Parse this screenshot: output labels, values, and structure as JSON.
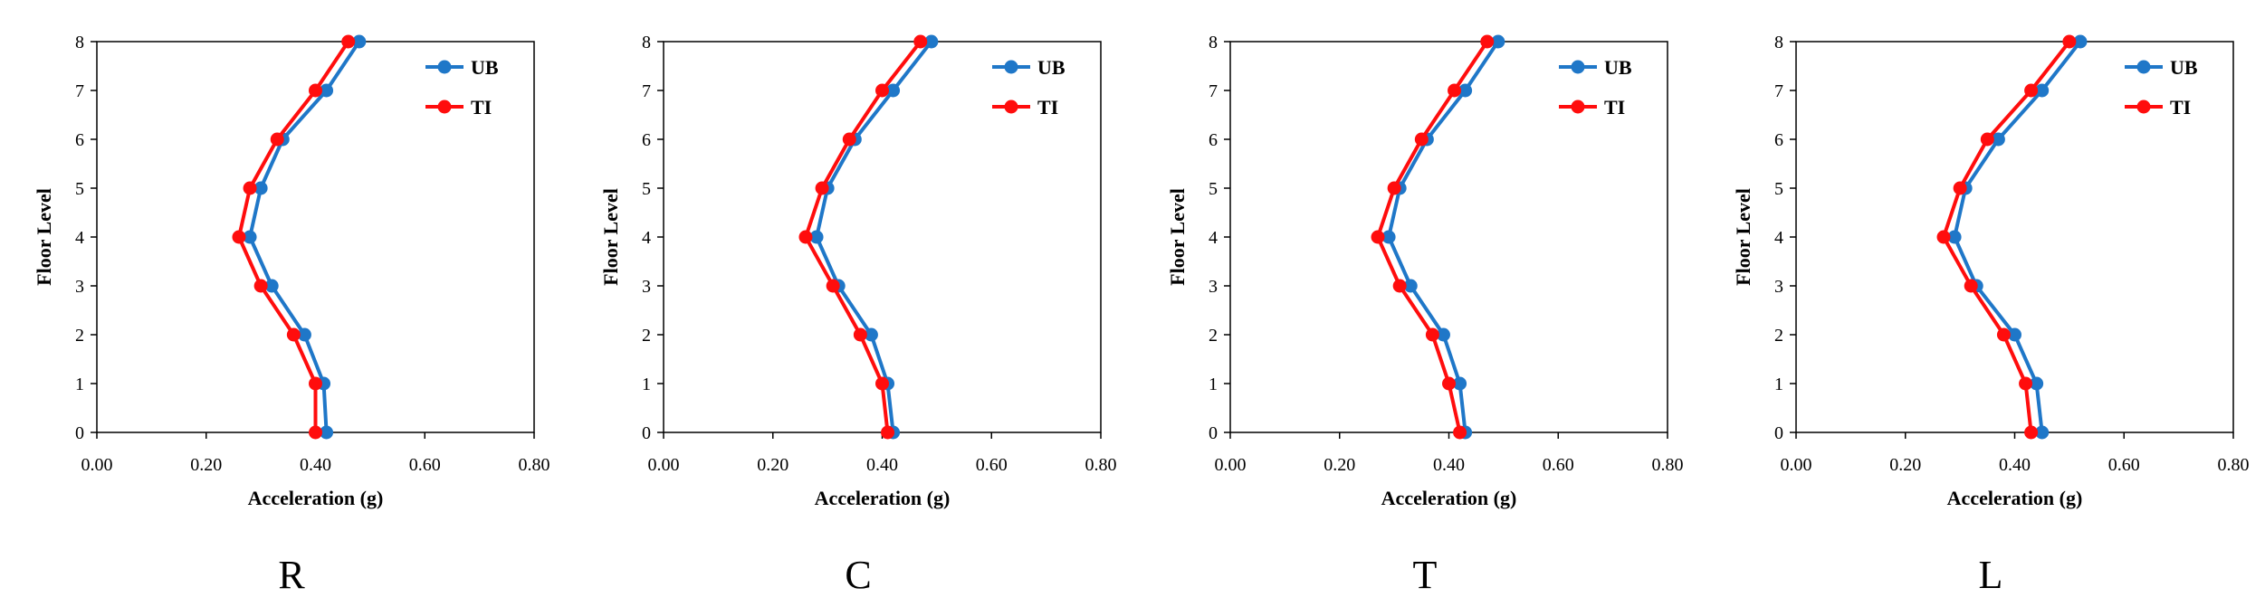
{
  "figure": {
    "colors": {
      "UB": "#1f77c8",
      "TI": "#ff0d0d"
    }
  },
  "chart_data": [
    {
      "panel": "R",
      "type": "line",
      "xlabel": "Acceleration (g)",
      "ylabel": "Floor Level",
      "xlim": [
        0,
        0.8
      ],
      "ylim": [
        0,
        8
      ],
      "x_ticks": [
        "0.00",
        "0.20",
        "0.40",
        "0.60",
        "0.80"
      ],
      "y_ticks": [
        "0",
        "1",
        "2",
        "3",
        "4",
        "5",
        "6",
        "7",
        "8"
      ],
      "legend": [
        "UB",
        "TI"
      ],
      "legend_position": "top-right",
      "series": [
        {
          "name": "UB",
          "floors": [
            0,
            1,
            2,
            3,
            4,
            5,
            6,
            7,
            8
          ],
          "values": [
            0.42,
            0.415,
            0.38,
            0.32,
            0.28,
            0.3,
            0.34,
            0.42,
            0.48
          ]
        },
        {
          "name": "TI",
          "floors": [
            0,
            1,
            2,
            3,
            4,
            5,
            6,
            7,
            8
          ],
          "values": [
            0.4,
            0.4,
            0.36,
            0.3,
            0.26,
            0.28,
            0.33,
            0.4,
            0.46
          ]
        }
      ]
    },
    {
      "panel": "C",
      "type": "line",
      "xlabel": "Acceleration (g)",
      "ylabel": "Floor Level",
      "xlim": [
        0,
        0.8
      ],
      "ylim": [
        0,
        8
      ],
      "x_ticks": [
        "0.00",
        "0.20",
        "0.40",
        "0.60",
        "0.80"
      ],
      "y_ticks": [
        "0",
        "1",
        "2",
        "3",
        "4",
        "5",
        "6",
        "7",
        "8"
      ],
      "legend": [
        "UB",
        "TI"
      ],
      "legend_position": "top-right",
      "series": [
        {
          "name": "UB",
          "floors": [
            0,
            1,
            2,
            3,
            4,
            5,
            6,
            7,
            8
          ],
          "values": [
            0.42,
            0.41,
            0.38,
            0.32,
            0.28,
            0.3,
            0.35,
            0.42,
            0.49
          ]
        },
        {
          "name": "TI",
          "floors": [
            0,
            1,
            2,
            3,
            4,
            5,
            6,
            7,
            8
          ],
          "values": [
            0.41,
            0.4,
            0.36,
            0.31,
            0.26,
            0.29,
            0.34,
            0.4,
            0.47
          ]
        }
      ]
    },
    {
      "panel": "T",
      "type": "line",
      "xlabel": "Acceleration (g)",
      "ylabel": "Floor Level",
      "xlim": [
        0,
        0.8
      ],
      "ylim": [
        0,
        8
      ],
      "x_ticks": [
        "0.00",
        "0.20",
        "0.40",
        "0.60",
        "0.80"
      ],
      "y_ticks": [
        "0",
        "1",
        "2",
        "3",
        "4",
        "5",
        "6",
        "7",
        "8"
      ],
      "legend": [
        "UB",
        "TI"
      ],
      "legend_position": "top-right",
      "series": [
        {
          "name": "UB",
          "floors": [
            0,
            1,
            2,
            3,
            4,
            5,
            6,
            7,
            8
          ],
          "values": [
            0.43,
            0.42,
            0.39,
            0.33,
            0.29,
            0.31,
            0.36,
            0.43,
            0.49
          ]
        },
        {
          "name": "TI",
          "floors": [
            0,
            1,
            2,
            3,
            4,
            5,
            6,
            7,
            8
          ],
          "values": [
            0.42,
            0.4,
            0.37,
            0.31,
            0.27,
            0.3,
            0.35,
            0.41,
            0.47
          ]
        }
      ]
    },
    {
      "panel": "L",
      "type": "line",
      "xlabel": "Acceleration (g)",
      "ylabel": "Floor Level",
      "xlim": [
        0,
        0.8
      ],
      "ylim": [
        0,
        8
      ],
      "x_ticks": [
        "0.00",
        "0.20",
        "0.40",
        "0.60",
        "0.80"
      ],
      "y_ticks": [
        "0",
        "1",
        "2",
        "3",
        "4",
        "5",
        "6",
        "7",
        "8"
      ],
      "legend": [
        "UB",
        "TI"
      ],
      "legend_position": "top-right",
      "series": [
        {
          "name": "UB",
          "floors": [
            0,
            1,
            2,
            3,
            4,
            5,
            6,
            7,
            8
          ],
          "values": [
            0.45,
            0.44,
            0.4,
            0.33,
            0.29,
            0.31,
            0.37,
            0.45,
            0.52
          ]
        },
        {
          "name": "TI",
          "floors": [
            0,
            1,
            2,
            3,
            4,
            5,
            6,
            7,
            8
          ],
          "values": [
            0.43,
            0.42,
            0.38,
            0.32,
            0.27,
            0.3,
            0.35,
            0.43,
            0.5
          ]
        }
      ]
    }
  ]
}
